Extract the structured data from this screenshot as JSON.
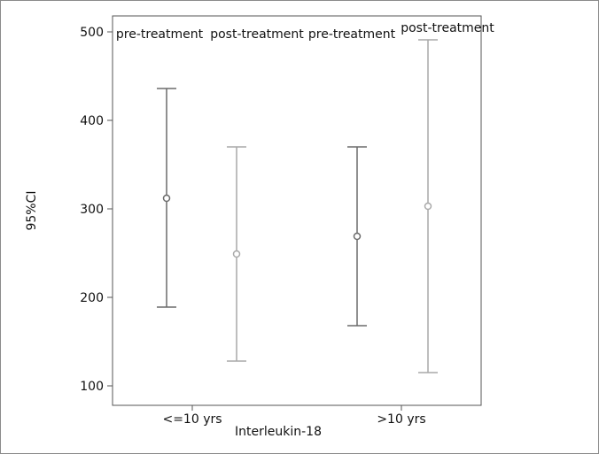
{
  "chart_data": {
    "type": "errorbar",
    "title": "",
    "xlabel": "Interleukin-18",
    "ylabel": "95%CI",
    "ylim": [
      78,
      518
    ],
    "yticks": [
      100,
      200,
      300,
      400,
      500
    ],
    "categories": [
      "<=10 yrs",
      ">10 yrs"
    ],
    "series_labels": [
      "pre-treatment",
      "post-treatment",
      "pre-treatment",
      "post-treatment"
    ],
    "bars": [
      {
        "category": "<=10 yrs",
        "group": "pre-treatment",
        "mean": 312,
        "lower": 189,
        "upper": 436,
        "color": "#6b6b6b"
      },
      {
        "category": "<=10 yrs",
        "group": "post-treatment",
        "mean": 249,
        "lower": 128,
        "upper": 370,
        "color": "#a9a9a9"
      },
      {
        "category": ">10 yrs",
        "group": "pre-treatment",
        "mean": 269,
        "lower": 168,
        "upper": 370,
        "color": "#6b6b6b"
      },
      {
        "category": ">10 yrs",
        "group": "post-treatment",
        "mean": 303,
        "lower": 115,
        "upper": 491,
        "color": "#a9a9a9"
      }
    ],
    "grid": false,
    "legend": "none"
  }
}
